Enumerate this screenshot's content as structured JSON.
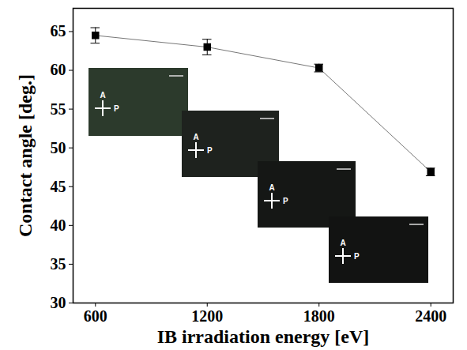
{
  "chart_data": {
    "type": "line",
    "xlabel": "IB irradiation energy [eV]",
    "ylabel": "Contact angle [deg.]",
    "x": [
      600,
      1200,
      1800,
      2400
    ],
    "values": [
      64.5,
      63.0,
      60.3,
      46.9
    ],
    "errors": [
      1.0,
      1.0,
      0.5,
      0.5
    ],
    "color": "#000000",
    "marker": "square",
    "xlim": [
      480,
      2520
    ],
    "xticks": [
      600,
      1200,
      1800,
      2400
    ],
    "ylim": [
      30,
      68
    ],
    "yticks": [
      30,
      35,
      40,
      45,
      50,
      55,
      60,
      65
    ],
    "grid": false,
    "inset_labels": [
      "A",
      "P"
    ]
  }
}
